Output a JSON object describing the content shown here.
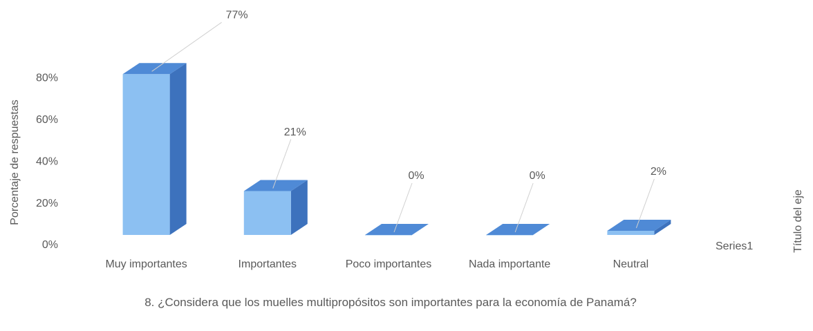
{
  "chart_data": {
    "type": "bar3d",
    "categories": [
      "Muy importantes",
      "Importantes",
      "Poco importantes",
      "Nada importante",
      "Neutral"
    ],
    "series": [
      {
        "name": "Series1",
        "color": "#8cc0f2",
        "values": [
          77,
          21,
          0,
          0,
          2
        ],
        "value_labels": [
          "77%",
          "21%",
          "0%",
          "0%",
          "2%"
        ]
      }
    ],
    "ylim": [
      0,
      90
    ],
    "yticks": [
      {
        "value": 0,
        "label": "0%"
      },
      {
        "value": 20,
        "label": "20%"
      },
      {
        "value": 40,
        "label": "40%"
      },
      {
        "value": 60,
        "label": "60%"
      },
      {
        "value": 80,
        "label": "80%"
      }
    ],
    "y_label": "Porcentaje de respuestas",
    "x_label": "8. ¿Considera que los muelles multipropósitos son importantes para la economía de Panamá?",
    "z_label": "Título del eje",
    "grid": false
  }
}
